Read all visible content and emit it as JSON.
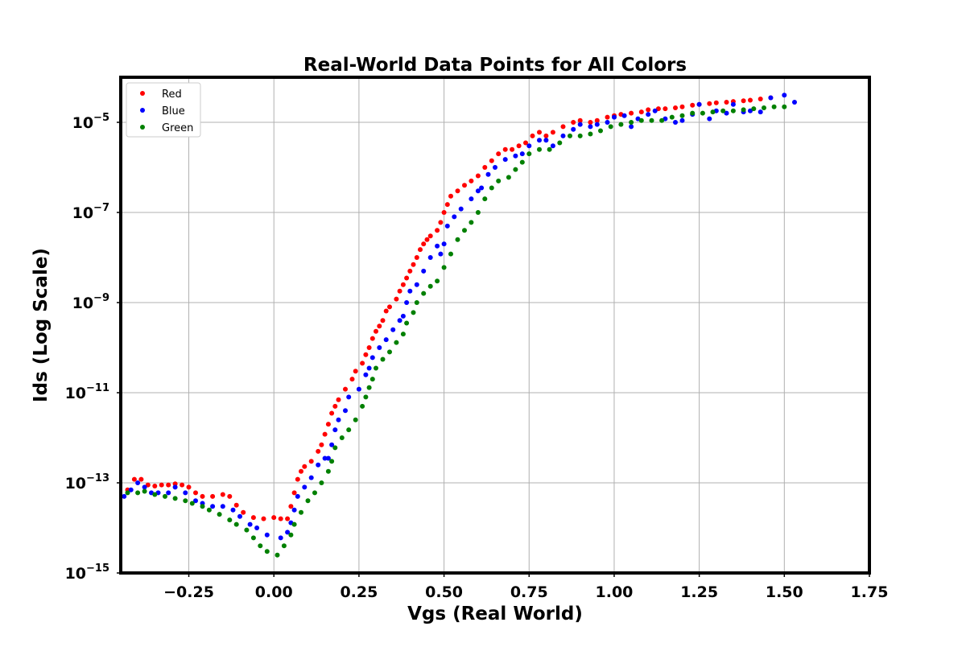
{
  "chart_data": {
    "type": "scatter",
    "title": "Real-World Data Points for All Colors",
    "xlabel": "Vgs (Real World)",
    "ylabel": "Ids (Log Scale)",
    "xlim": [
      -0.45,
      1.75
    ],
    "ylim": [
      1e-15,
      0.0001
    ],
    "yscale": "log",
    "grid": true,
    "legend_position": "upper-left",
    "x_ticks": [
      {
        "value": -0.25,
        "label": "−0.25"
      },
      {
        "value": 0.0,
        "label": "0.00"
      },
      {
        "value": 0.25,
        "label": "0.25"
      },
      {
        "value": 0.5,
        "label": "0.50"
      },
      {
        "value": 0.75,
        "label": "0.75"
      },
      {
        "value": 1.0,
        "label": "1.00"
      },
      {
        "value": 1.25,
        "label": "1.25"
      },
      {
        "value": 1.5,
        "label": "1.50"
      },
      {
        "value": 1.75,
        "label": "1.75"
      }
    ],
    "y_ticks": [
      {
        "value": 1e-15,
        "base": "10",
        "exp": "−15"
      },
      {
        "value": 1e-13,
        "base": "10",
        "exp": "−13"
      },
      {
        "value": 1e-11,
        "base": "10",
        "exp": "−11"
      },
      {
        "value": 1e-09,
        "base": "10",
        "exp": "−9"
      },
      {
        "value": 1e-07,
        "base": "10",
        "exp": "−7"
      },
      {
        "value": 1e-05,
        "base": "10",
        "exp": "−5"
      }
    ],
    "series": [
      {
        "name": "Red",
        "color": "#ff0000",
        "points": [
          [
            -0.43,
            7e-14
          ],
          [
            -0.41,
            1.2e-13
          ],
          [
            -0.39,
            1.2e-13
          ],
          [
            -0.37,
            9e-14
          ],
          [
            -0.35,
            8.5e-14
          ],
          [
            -0.33,
            9e-14
          ],
          [
            -0.31,
            9e-14
          ],
          [
            -0.29,
            9.5e-14
          ],
          [
            -0.27,
            9e-14
          ],
          [
            -0.25,
            8e-14
          ],
          [
            -0.23,
            6e-14
          ],
          [
            -0.21,
            5e-14
          ],
          [
            -0.18,
            5e-14
          ],
          [
            -0.15,
            5.5e-14
          ],
          [
            -0.13,
            5e-14
          ],
          [
            -0.11,
            3.2e-14
          ],
          [
            -0.09,
            2.2e-14
          ],
          [
            -0.06,
            1.7e-14
          ],
          [
            -0.03,
            1.6e-14
          ],
          [
            0.0,
            1.7e-14
          ],
          [
            0.02,
            1.6e-14
          ],
          [
            0.04,
            1.6e-14
          ],
          [
            0.05,
            3e-14
          ],
          [
            0.06,
            6e-14
          ],
          [
            0.07,
            1.2e-13
          ],
          [
            0.08,
            1.8e-13
          ],
          [
            0.09,
            2.3e-13
          ],
          [
            0.11,
            3e-13
          ],
          [
            0.13,
            5e-13
          ],
          [
            0.14,
            7e-13
          ],
          [
            0.15,
            1.2e-12
          ],
          [
            0.16,
            2e-12
          ],
          [
            0.17,
            3.5e-12
          ],
          [
            0.18,
            5e-12
          ],
          [
            0.19,
            7e-12
          ],
          [
            0.21,
            1.2e-11
          ],
          [
            0.23,
            2e-11
          ],
          [
            0.24,
            3e-11
          ],
          [
            0.26,
            4.5e-11
          ],
          [
            0.27,
            7e-11
          ],
          [
            0.28,
            1e-10
          ],
          [
            0.29,
            1.6e-10
          ],
          [
            0.3,
            2.3e-10
          ],
          [
            0.31,
            3e-10
          ],
          [
            0.32,
            4e-10
          ],
          [
            0.33,
            6.5e-10
          ],
          [
            0.34,
            8e-10
          ],
          [
            0.36,
            1.2e-09
          ],
          [
            0.37,
            1.8e-09
          ],
          [
            0.38,
            2.5e-09
          ],
          [
            0.39,
            3.5e-09
          ],
          [
            0.4,
            5e-09
          ],
          [
            0.41,
            7e-09
          ],
          [
            0.42,
            1e-08
          ],
          [
            0.43,
            1.5e-08
          ],
          [
            0.44,
            2e-08
          ],
          [
            0.45,
            2.5e-08
          ],
          [
            0.46,
            3e-08
          ],
          [
            0.48,
            4e-08
          ],
          [
            0.49,
            6e-08
          ],
          [
            0.5,
            1e-07
          ],
          [
            0.51,
            1.5e-07
          ],
          [
            0.52,
            2.3e-07
          ],
          [
            0.54,
            3e-07
          ],
          [
            0.56,
            4e-07
          ],
          [
            0.58,
            5e-07
          ],
          [
            0.6,
            6.5e-07
          ],
          [
            0.62,
            1e-06
          ],
          [
            0.64,
            1.4e-06
          ],
          [
            0.66,
            2e-06
          ],
          [
            0.68,
            2.5e-06
          ],
          [
            0.7,
            2.5e-06
          ],
          [
            0.72,
            3e-06
          ],
          [
            0.74,
            3.5e-06
          ],
          [
            0.76,
            5e-06
          ],
          [
            0.78,
            6e-06
          ],
          [
            0.8,
            5e-06
          ],
          [
            0.82,
            6e-06
          ],
          [
            0.85,
            8e-06
          ],
          [
            0.88,
            1e-05
          ],
          [
            0.9,
            1.1e-05
          ],
          [
            0.93,
            1e-05
          ],
          [
            0.95,
            1.1e-05
          ],
          [
            0.98,
            1.3e-05
          ],
          [
            1.0,
            1.4e-05
          ],
          [
            1.02,
            1.5e-05
          ],
          [
            1.05,
            1.6e-05
          ],
          [
            1.08,
            1.7e-05
          ],
          [
            1.1,
            1.9e-05
          ],
          [
            1.13,
            2e-05
          ],
          [
            1.15,
            2e-05
          ],
          [
            1.18,
            2.1e-05
          ],
          [
            1.2,
            2.2e-05
          ],
          [
            1.23,
            2.4e-05
          ],
          [
            1.25,
            2.5e-05
          ],
          [
            1.28,
            2.6e-05
          ],
          [
            1.3,
            2.7e-05
          ],
          [
            1.33,
            2.8e-05
          ],
          [
            1.35,
            2.9e-05
          ],
          [
            1.38,
            3e-05
          ],
          [
            1.4,
            3.1e-05
          ],
          [
            1.43,
            3.3e-05
          ],
          [
            1.46,
            3.5e-05
          ]
        ]
      },
      {
        "name": "Blue",
        "color": "#0000ff",
        "points": [
          [
            -0.44,
            5e-14
          ],
          [
            -0.42,
            7e-14
          ],
          [
            -0.4,
            1e-13
          ],
          [
            -0.38,
            8e-14
          ],
          [
            -0.36,
            6e-14
          ],
          [
            -0.34,
            6e-14
          ],
          [
            -0.31,
            6e-14
          ],
          [
            -0.29,
            8e-14
          ],
          [
            -0.26,
            6e-14
          ],
          [
            -0.23,
            4e-14
          ],
          [
            -0.21,
            3.5e-14
          ],
          [
            -0.18,
            3e-14
          ],
          [
            -0.15,
            3e-14
          ],
          [
            -0.12,
            2.5e-14
          ],
          [
            -0.1,
            1.8e-14
          ],
          [
            -0.07,
            1.2e-14
          ],
          [
            -0.05,
            1e-14
          ],
          [
            -0.02,
            7e-15
          ],
          [
            0.02,
            6e-15
          ],
          [
            0.04,
            8e-15
          ],
          [
            0.05,
            1.3e-14
          ],
          [
            0.06,
            2.5e-14
          ],
          [
            0.07,
            5e-14
          ],
          [
            0.09,
            8e-14
          ],
          [
            0.11,
            1.3e-13
          ],
          [
            0.13,
            2.5e-13
          ],
          [
            0.15,
            3.5e-13
          ],
          [
            0.16,
            3.5e-13
          ],
          [
            0.17,
            7e-13
          ],
          [
            0.18,
            1.5e-12
          ],
          [
            0.19,
            2.5e-12
          ],
          [
            0.21,
            4e-12
          ],
          [
            0.22,
            8e-12
          ],
          [
            0.25,
            1.2e-11
          ],
          [
            0.27,
            2.5e-11
          ],
          [
            0.28,
            3.5e-11
          ],
          [
            0.29,
            6e-11
          ],
          [
            0.31,
            1e-10
          ],
          [
            0.33,
            1.5e-10
          ],
          [
            0.35,
            2.5e-10
          ],
          [
            0.37,
            4e-10
          ],
          [
            0.38,
            5e-10
          ],
          [
            0.39,
            1e-09
          ],
          [
            0.4,
            1.8e-09
          ],
          [
            0.42,
            2.5e-09
          ],
          [
            0.44,
            5e-09
          ],
          [
            0.46,
            1e-08
          ],
          [
            0.48,
            1.8e-08
          ],
          [
            0.49,
            1.2e-08
          ],
          [
            0.5,
            2e-08
          ],
          [
            0.51,
            5e-08
          ],
          [
            0.53,
            8e-08
          ],
          [
            0.55,
            1.2e-07
          ],
          [
            0.58,
            2e-07
          ],
          [
            0.6,
            3e-07
          ],
          [
            0.61,
            3.5e-07
          ],
          [
            0.63,
            7e-07
          ],
          [
            0.65,
            1e-06
          ],
          [
            0.68,
            1.5e-06
          ],
          [
            0.71,
            1.8e-06
          ],
          [
            0.73,
            2e-06
          ],
          [
            0.75,
            3e-06
          ],
          [
            0.78,
            4e-06
          ],
          [
            0.8,
            4e-06
          ],
          [
            0.82,
            3e-06
          ],
          [
            0.85,
            5e-06
          ],
          [
            0.88,
            7e-06
          ],
          [
            0.9,
            9e-06
          ],
          [
            0.93,
            8e-06
          ],
          [
            0.95,
            9e-06
          ],
          [
            0.98,
            1e-05
          ],
          [
            1.0,
            1.3e-05
          ],
          [
            1.03,
            1.4e-05
          ],
          [
            1.05,
            8e-06
          ],
          [
            1.07,
            1.2e-05
          ],
          [
            1.1,
            1.5e-05
          ],
          [
            1.12,
            1.8e-05
          ],
          [
            1.15,
            1.2e-05
          ],
          [
            1.18,
            1e-05
          ],
          [
            1.2,
            1.1e-05
          ],
          [
            1.23,
            1.5e-05
          ],
          [
            1.25,
            2.5e-05
          ],
          [
            1.28,
            1.2e-05
          ],
          [
            1.3,
            1.8e-05
          ],
          [
            1.33,
            1.6e-05
          ],
          [
            1.35,
            2.5e-05
          ],
          [
            1.38,
            1.7e-05
          ],
          [
            1.4,
            1.8e-05
          ],
          [
            1.43,
            1.7e-05
          ],
          [
            1.46,
            3.5e-05
          ],
          [
            1.5,
            4e-05
          ],
          [
            1.53,
            2.8e-05
          ]
        ]
      },
      {
        "name": "Green",
        "color": "#008000",
        "points": [
          [
            -0.43,
            6e-14
          ],
          [
            -0.4,
            6e-14
          ],
          [
            -0.38,
            6.5e-14
          ],
          [
            -0.35,
            5.5e-14
          ],
          [
            -0.32,
            5e-14
          ],
          [
            -0.29,
            4.5e-14
          ],
          [
            -0.26,
            4e-14
          ],
          [
            -0.24,
            3.5e-14
          ],
          [
            -0.21,
            3e-14
          ],
          [
            -0.19,
            2.5e-14
          ],
          [
            -0.16,
            2e-14
          ],
          [
            -0.13,
            1.5e-14
          ],
          [
            -0.11,
            1.2e-14
          ],
          [
            -0.08,
            9e-15
          ],
          [
            -0.06,
            6e-15
          ],
          [
            -0.04,
            4e-15
          ],
          [
            -0.02,
            3e-15
          ],
          [
            0.01,
            2.5e-15
          ],
          [
            0.03,
            4e-15
          ],
          [
            0.05,
            7e-15
          ],
          [
            0.06,
            1.2e-14
          ],
          [
            0.08,
            2.2e-14
          ],
          [
            0.1,
            4e-14
          ],
          [
            0.12,
            6e-14
          ],
          [
            0.14,
            1e-13
          ],
          [
            0.16,
            1.8e-13
          ],
          [
            0.17,
            3e-13
          ],
          [
            0.18,
            6e-13
          ],
          [
            0.2,
            1e-12
          ],
          [
            0.22,
            1.5e-12
          ],
          [
            0.24,
            2.5e-12
          ],
          [
            0.26,
            5e-12
          ],
          [
            0.27,
            8e-12
          ],
          [
            0.28,
            1.3e-11
          ],
          [
            0.29,
            2e-11
          ],
          [
            0.3,
            3.5e-11
          ],
          [
            0.32,
            5.5e-11
          ],
          [
            0.34,
            8e-11
          ],
          [
            0.36,
            1.3e-10
          ],
          [
            0.38,
            2e-10
          ],
          [
            0.39,
            3.5e-10
          ],
          [
            0.41,
            6e-10
          ],
          [
            0.42,
            1e-09
          ],
          [
            0.44,
            1.6e-09
          ],
          [
            0.46,
            2.3e-09
          ],
          [
            0.48,
            3e-09
          ],
          [
            0.5,
            6e-09
          ],
          [
            0.52,
            1.2e-08
          ],
          [
            0.54,
            2.5e-08
          ],
          [
            0.56,
            4e-08
          ],
          [
            0.58,
            6e-08
          ],
          [
            0.6,
            1e-07
          ],
          [
            0.62,
            2e-07
          ],
          [
            0.64,
            3.5e-07
          ],
          [
            0.66,
            5e-07
          ],
          [
            0.69,
            6e-07
          ],
          [
            0.71,
            9e-07
          ],
          [
            0.73,
            1.3e-06
          ],
          [
            0.75,
            2e-06
          ],
          [
            0.78,
            2.5e-06
          ],
          [
            0.81,
            2.5e-06
          ],
          [
            0.84,
            3.5e-06
          ],
          [
            0.87,
            5e-06
          ],
          [
            0.9,
            5e-06
          ],
          [
            0.93,
            5.5e-06
          ],
          [
            0.96,
            6.5e-06
          ],
          [
            0.99,
            8e-06
          ],
          [
            1.02,
            9e-06
          ],
          [
            1.05,
            1e-05
          ],
          [
            1.08,
            1.1e-05
          ],
          [
            1.11,
            1.1e-05
          ],
          [
            1.14,
            1.1e-05
          ],
          [
            1.17,
            1.3e-05
          ],
          [
            1.2,
            1.4e-05
          ],
          [
            1.23,
            1.6e-05
          ],
          [
            1.26,
            1.6e-05
          ],
          [
            1.29,
            1.7e-05
          ],
          [
            1.32,
            1.8e-05
          ],
          [
            1.35,
            1.8e-05
          ],
          [
            1.38,
            1.9e-05
          ],
          [
            1.41,
            2e-05
          ],
          [
            1.44,
            2.1e-05
          ],
          [
            1.47,
            2.2e-05
          ],
          [
            1.5,
            2.2e-05
          ]
        ]
      }
    ]
  }
}
